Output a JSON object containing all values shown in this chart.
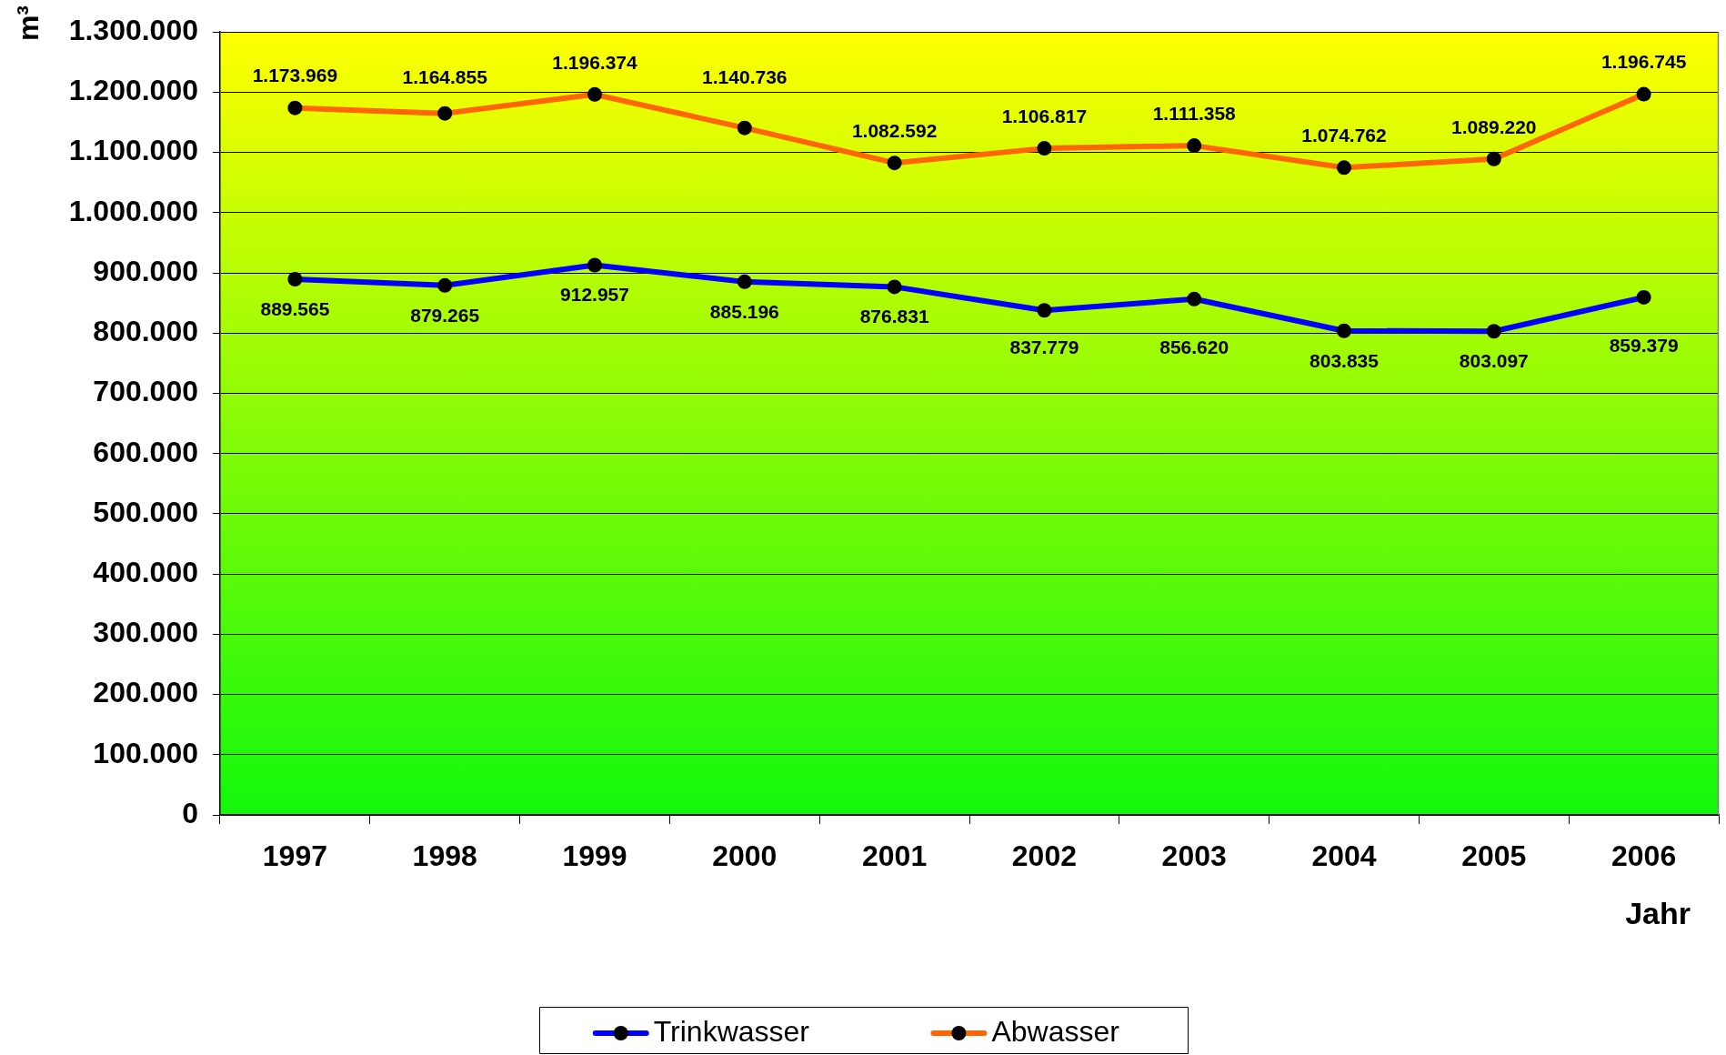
{
  "chart_data": {
    "type": "line",
    "ylabel": "m³",
    "xlabel": "Jahr",
    "categories": [
      "1997",
      "1998",
      "1999",
      "2000",
      "2001",
      "2002",
      "2003",
      "2004",
      "2005",
      "2006"
    ],
    "series": [
      {
        "name": "Trinkwasser",
        "color": "#0000ff",
        "values": [
          889565,
          879265,
          912957,
          885196,
          876831,
          837779,
          856620,
          803835,
          803097,
          859379
        ],
        "value_labels": [
          "889.565",
          "879.265",
          "912.957",
          "885.196",
          "876.831",
          "837.779",
          "856.620",
          "803.835",
          "803.097",
          "859.379"
        ]
      },
      {
        "name": "Abwasser",
        "color": "#ff6600",
        "values": [
          1173969,
          1164855,
          1196374,
          1140736,
          1082592,
          1106817,
          1111358,
          1074762,
          1089220,
          1196745
        ],
        "value_labels": [
          "1.173.969",
          "1.164.855",
          "1.196.374",
          "1.140.736",
          "1.082.592",
          "1.106.817",
          "1.111.358",
          "1.074.762",
          "1.089.220",
          "1.196.745"
        ]
      }
    ],
    "ylim": [
      0,
      1300000
    ],
    "yticks": [
      0,
      {
        "value": 100000,
        "label": "100.000"
      },
      {
        "value": 200000,
        "label": "200.000"
      },
      {
        "value": 300000,
        "label": "300.000"
      },
      {
        "value": 400000,
        "label": "400.000"
      },
      {
        "value": 500000,
        "label": "500.000"
      },
      {
        "value": 600000,
        "label": "600.000"
      },
      {
        "value": 700000,
        "label": "700.000"
      },
      {
        "value": 800000,
        "label": "800.000"
      },
      {
        "value": 900000,
        "label": "900.000"
      },
      {
        "value": 1000000,
        "label": "1.000.000"
      },
      {
        "value": 1100000,
        "label": "1.100.000"
      },
      {
        "value": 1200000,
        "label": "1.200.000"
      },
      {
        "value": 1300000,
        "label": "1.300.000"
      }
    ],
    "grid": "y",
    "legend": "bottom",
    "marker": "circle",
    "line_style": "solid"
  }
}
